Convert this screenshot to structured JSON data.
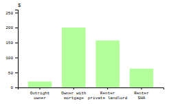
{
  "chart_data": {
    "type": "bar",
    "categories": [
      "Outright\nowner",
      "Owner with\nmortgage",
      "Renter\nprivate landlord",
      "Renter\nSHA"
    ],
    "values": [
      20,
      200,
      157,
      63
    ],
    "color": "#b3ff99",
    "ylabel": "$",
    "ylim": [
      0,
      260
    ],
    "yticks": [
      0,
      50,
      100,
      150,
      200,
      250
    ],
    "grid": false
  }
}
